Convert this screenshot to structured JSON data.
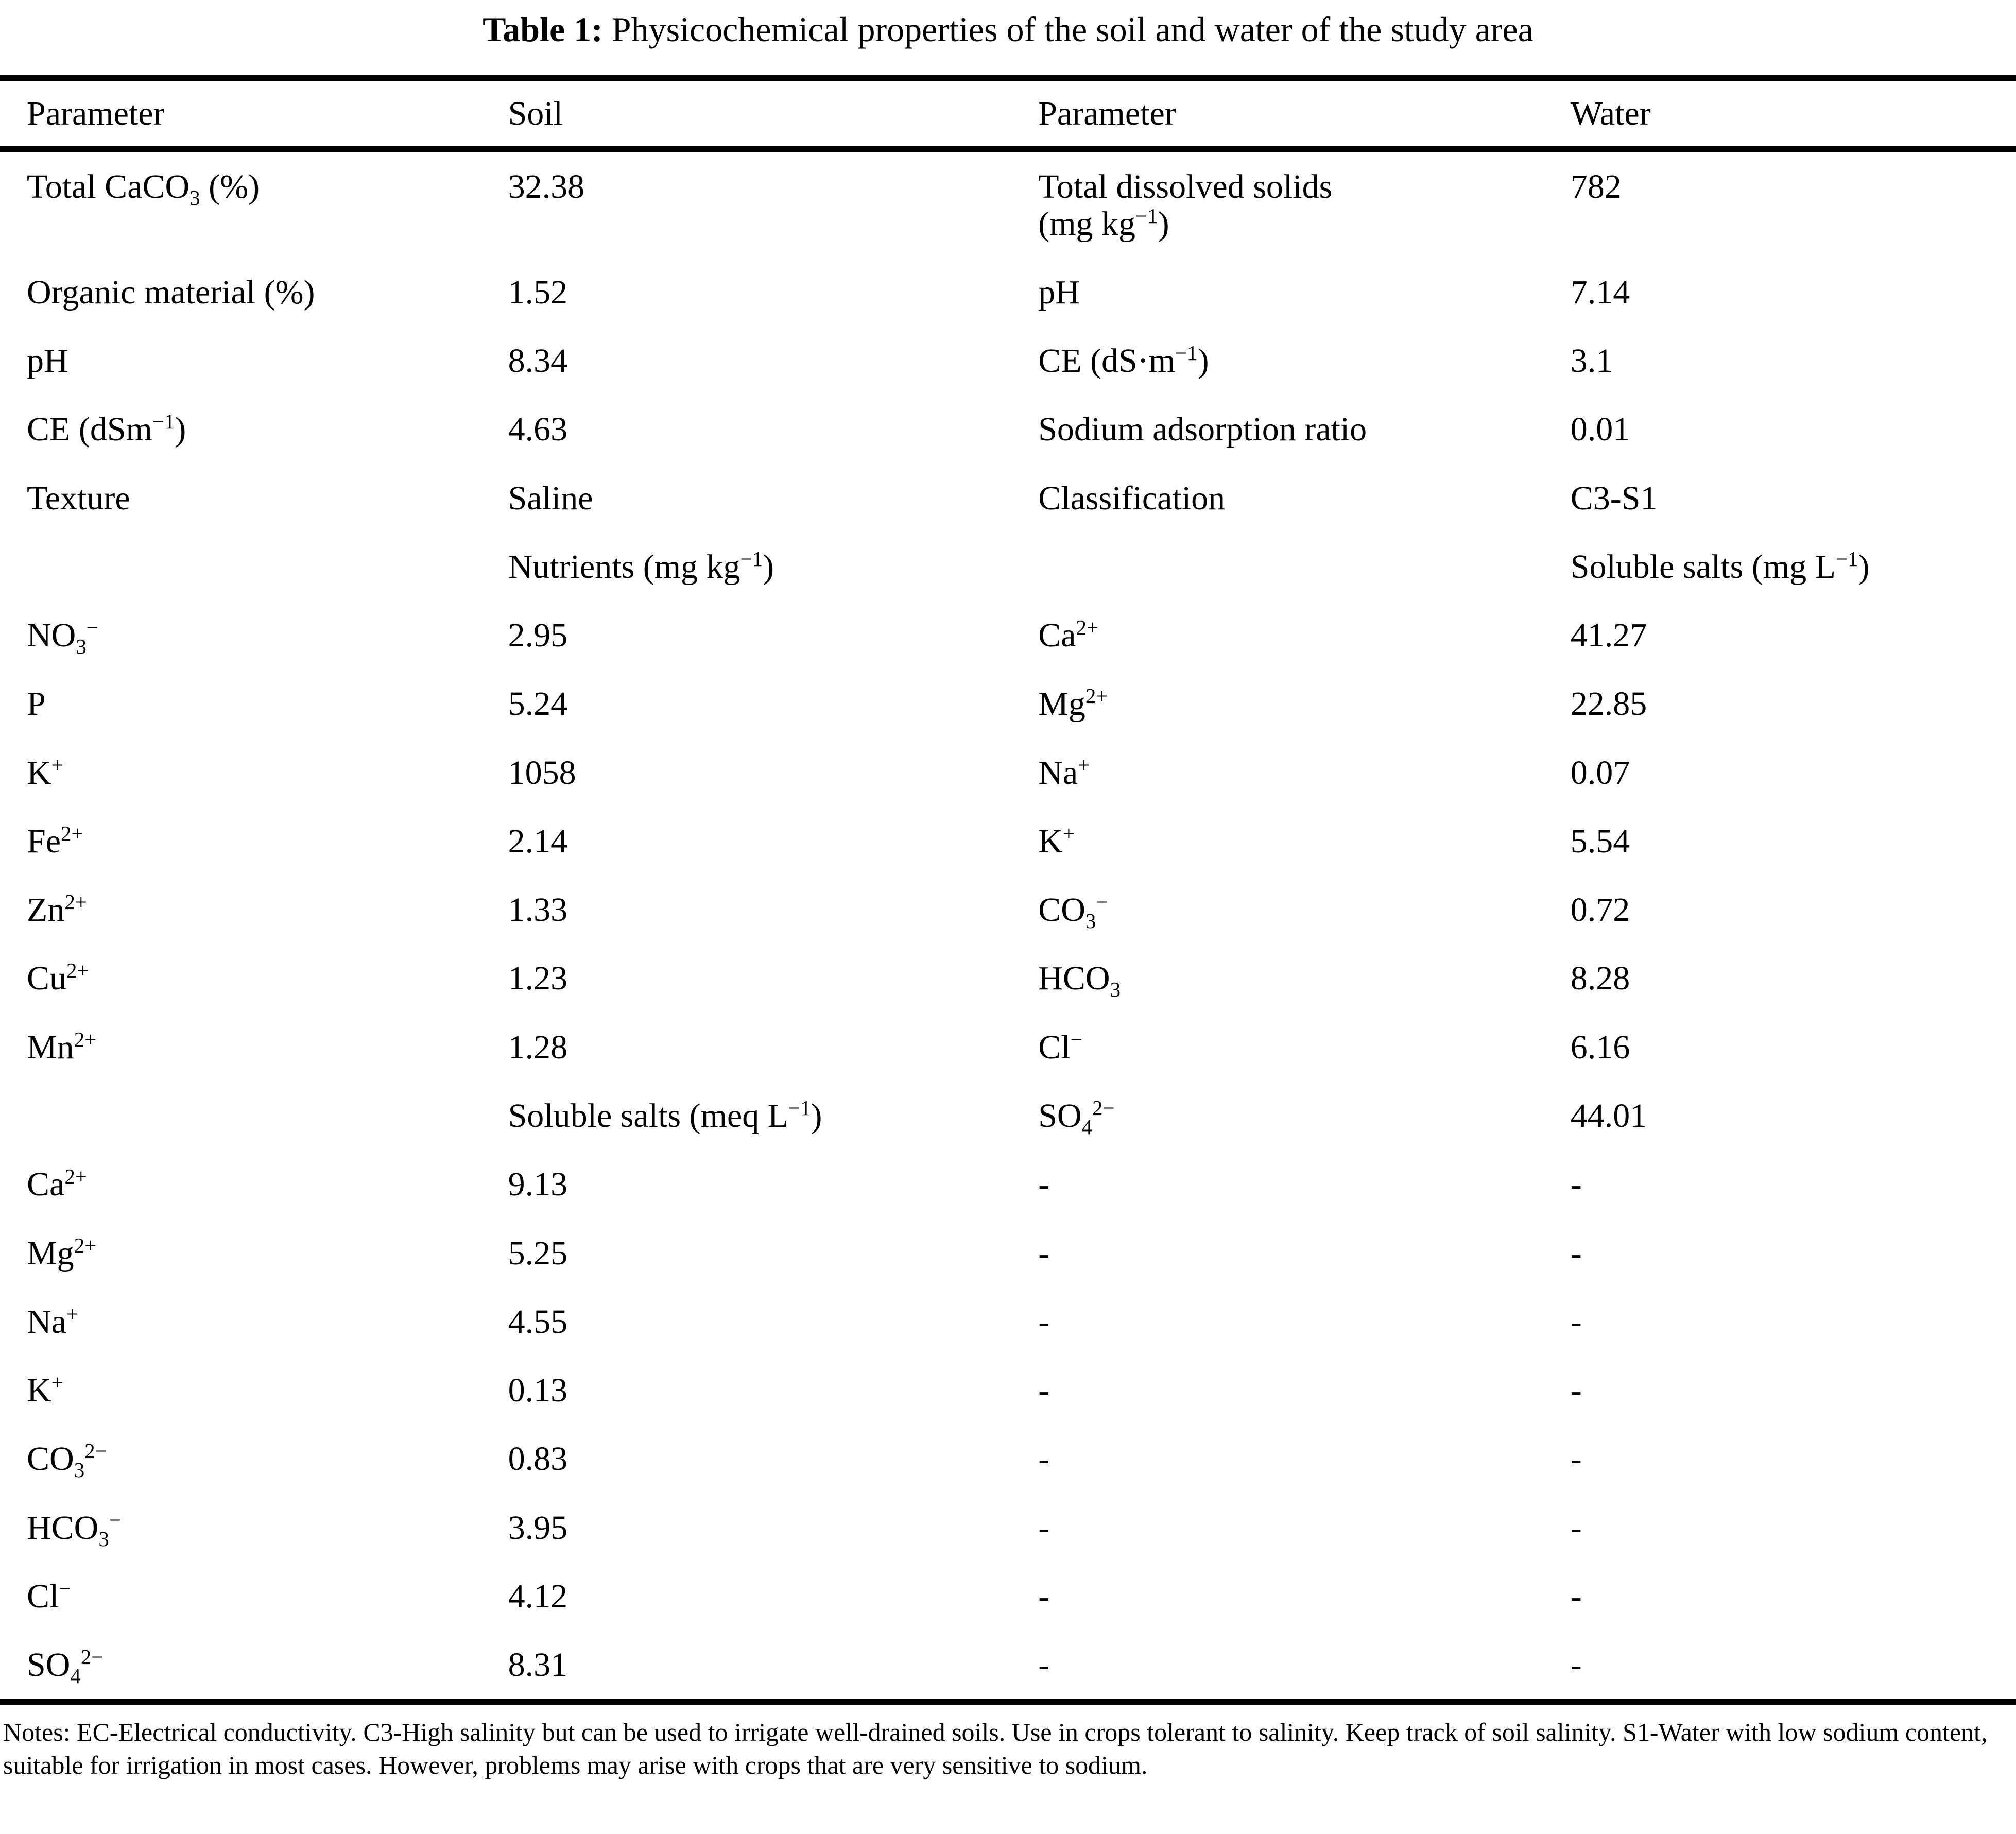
{
  "title": {
    "label": "Table 1:",
    "text": "Physicochemical properties of the soil and water of the study area"
  },
  "table": {
    "headers": [
      "Parameter",
      "Soil",
      "Parameter",
      "Water"
    ],
    "rows": [
      {
        "cells": [
          [
            "Total CaCO",
            {
              "sub": "3"
            },
            " (%)"
          ],
          [
            "32.38"
          ],
          [
            "Total dissolved solids",
            {
              "br": true
            },
            "(mg kg",
            {
              "sup": "−1"
            },
            ")"
          ],
          [
            "782"
          ]
        ]
      },
      {
        "cells": [
          [
            "Organic material (%)"
          ],
          [
            "1.52"
          ],
          [
            "pH"
          ],
          [
            "7.14"
          ]
        ]
      },
      {
        "cells": [
          [
            "pH"
          ],
          [
            "8.34"
          ],
          [
            "CE (dS·m",
            {
              "sup": "−1"
            },
            ")"
          ],
          [
            "3.1"
          ]
        ]
      },
      {
        "cells": [
          [
            "CE (dSm",
            {
              "sup": "−1"
            },
            ")"
          ],
          [
            "4.63"
          ],
          [
            "Sodium adsorption ratio"
          ],
          [
            "0.01"
          ]
        ]
      },
      {
        "cells": [
          [
            "Texture"
          ],
          [
            "Saline"
          ],
          [
            "Classification"
          ],
          [
            "C3-S1"
          ]
        ]
      },
      {
        "cells": [
          [],
          [
            "Nutrients (mg kg",
            {
              "sup": "−1"
            },
            ")"
          ],
          [],
          [
            "Soluble salts (mg L",
            {
              "sup": "−1"
            },
            ")"
          ]
        ]
      },
      {
        "cells": [
          [
            "NO",
            {
              "sub": "3"
            },
            {
              "sup": "−"
            }
          ],
          [
            "2.95"
          ],
          [
            "Ca",
            {
              "sup": "2+"
            }
          ],
          [
            "41.27"
          ]
        ]
      },
      {
        "cells": [
          [
            "P"
          ],
          [
            "5.24"
          ],
          [
            "Mg",
            {
              "sup": "2+"
            }
          ],
          [
            "22.85"
          ]
        ]
      },
      {
        "cells": [
          [
            "K",
            {
              "sup": "+"
            }
          ],
          [
            "1058"
          ],
          [
            "Na",
            {
              "sup": "+"
            }
          ],
          [
            "0.07"
          ]
        ]
      },
      {
        "cells": [
          [
            "Fe",
            {
              "sup": "2+"
            }
          ],
          [
            "2.14"
          ],
          [
            "K",
            {
              "sup": "+"
            }
          ],
          [
            "5.54"
          ]
        ]
      },
      {
        "cells": [
          [
            "Zn",
            {
              "sup": "2+"
            }
          ],
          [
            "1.33"
          ],
          [
            "CO",
            {
              "sub": "3"
            },
            {
              "sup": "−"
            }
          ],
          [
            "0.72"
          ]
        ]
      },
      {
        "cells": [
          [
            "Cu",
            {
              "sup": "2+"
            }
          ],
          [
            "1.23"
          ],
          [
            "HCO",
            {
              "sub": "3"
            }
          ],
          [
            "8.28"
          ]
        ]
      },
      {
        "cells": [
          [
            "Mn",
            {
              "sup": "2+"
            }
          ],
          [
            "1.28"
          ],
          [
            "Cl",
            {
              "sup": "−"
            }
          ],
          [
            "6.16"
          ]
        ]
      },
      {
        "cells": [
          [],
          [
            "Soluble salts (meq L",
            {
              "sup": "−1"
            },
            ")"
          ],
          [
            "SO",
            {
              "sub": "4"
            },
            {
              "sup": "2−"
            }
          ],
          [
            "44.01"
          ]
        ]
      },
      {
        "cells": [
          [
            "Ca",
            {
              "sup": "2+"
            }
          ],
          [
            "9.13"
          ],
          [
            "-"
          ],
          [
            "-"
          ]
        ]
      },
      {
        "cells": [
          [
            "Mg",
            {
              "sup": "2+"
            }
          ],
          [
            "5.25"
          ],
          [
            "-"
          ],
          [
            "-"
          ]
        ]
      },
      {
        "cells": [
          [
            "Na",
            {
              "sup": "+"
            }
          ],
          [
            "4.55"
          ],
          [
            "-"
          ],
          [
            "-"
          ]
        ]
      },
      {
        "cells": [
          [
            "K",
            {
              "sup": "+"
            }
          ],
          [
            "0.13"
          ],
          [
            "-"
          ],
          [
            "-"
          ]
        ]
      },
      {
        "cells": [
          [
            "CO",
            {
              "sub": "3"
            },
            {
              "sup": "2−"
            }
          ],
          [
            "0.83"
          ],
          [
            "-"
          ],
          [
            "-"
          ]
        ]
      },
      {
        "cells": [
          [
            "HCO",
            {
              "sub": "3"
            },
            {
              "sup": "−"
            }
          ],
          [
            "3.95"
          ],
          [
            "-"
          ],
          [
            "-"
          ]
        ]
      },
      {
        "cells": [
          [
            "Cl",
            {
              "sup": "−"
            }
          ],
          [
            "4.12"
          ],
          [
            "-"
          ],
          [
            "-"
          ]
        ]
      },
      {
        "cells": [
          [
            "SO",
            {
              "sub": "4"
            },
            {
              "sup": "2−"
            }
          ],
          [
            "8.31"
          ],
          [
            "-"
          ],
          [
            "-"
          ]
        ]
      }
    ]
  },
  "notes": "Notes: EC-Electrical conductivity. C3-High salinity but can be used to irrigate well-drained soils. Use in crops tolerant to salinity. Keep track of soil salinity. S1-Water with low sodium content, suitable for irrigation in most cases. However, problems may arise with crops that are very sensitive to sodium."
}
